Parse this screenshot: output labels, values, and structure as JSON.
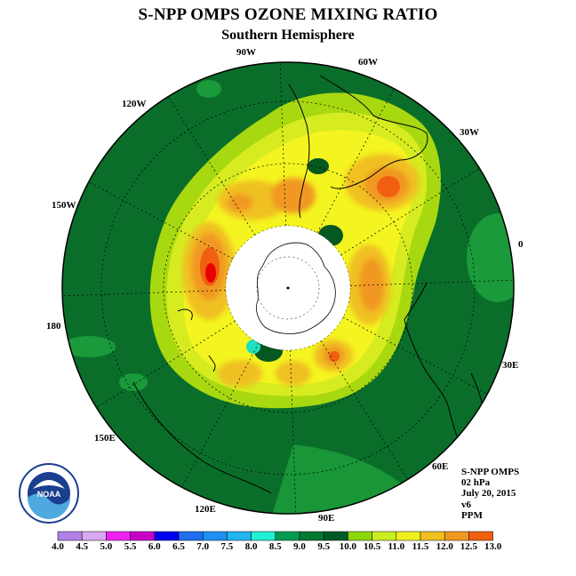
{
  "title": "S-NPP OMPS OZONE MIXING RATIO",
  "subtitle": "Southern Hemisphere",
  "longitude_labels": {
    "lon_90w": "90W",
    "lon_60w": "60W",
    "lon_30w": "30W",
    "lon_120w": "120W",
    "lon_150w": "150W",
    "lon_180": "180",
    "lon_0": "0",
    "lon_30e": "30E",
    "lon_60e": "60E",
    "lon_90e": "90E",
    "lon_120e": "120E",
    "lon_150e": "150E"
  },
  "info": {
    "instrument": "S-NPP OMPS",
    "level": "02 hPa",
    "date": "July 20, 2015",
    "version": "v6",
    "units": "PPM"
  },
  "logo_text": "NOAA",
  "colorbar": {
    "ticks": [
      "4.0",
      "4.5",
      "5.0",
      "5.5",
      "6.0",
      "6.5",
      "7.0",
      "7.5",
      "8.0",
      "8.5",
      "9.0",
      "9.5",
      "10.0",
      "10.5",
      "11.0",
      "11.5",
      "12.0",
      "12.5",
      "13.0"
    ],
    "colors": [
      "#b07fe8",
      "#d8a8f0",
      "#f020f0",
      "#c800c8",
      "#0000f0",
      "#1e6ef0",
      "#1e90f0",
      "#20b4f0",
      "#20f0d0",
      "#009a50",
      "#007830",
      "#005a28",
      "#8ed60a",
      "#c8ee20",
      "#f0f020",
      "#f0c020",
      "#f09820",
      "#f06010",
      "#e80000",
      "#8a5030"
    ]
  },
  "map_colors": {
    "background_green": "#0a6e2a",
    "dark_green": "#045820",
    "light_green": "#1a9a3a",
    "yellow_green": "#a8d810",
    "light_yellow": "#e0f020",
    "yellow": "#f4f420",
    "gold": "#f0c020",
    "orange": "#f09820",
    "orange_red": "#f06010",
    "red": "#e80000",
    "teal": "#20e0c0"
  }
}
